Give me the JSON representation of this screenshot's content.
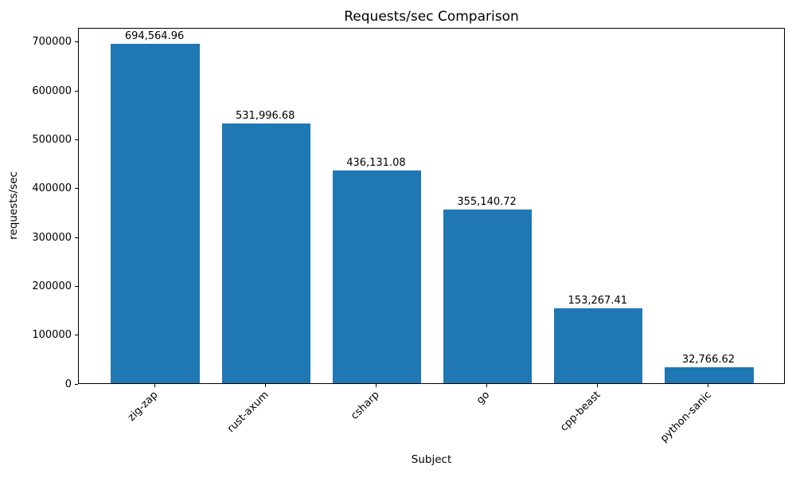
{
  "chart_data": {
    "type": "bar",
    "title": "Requests/sec Comparison",
    "xlabel": "Subject",
    "ylabel": "requests/sec",
    "categories": [
      "zig-zap",
      "rust-axum",
      "csharp",
      "go",
      "cpp-beast",
      "python-sanic"
    ],
    "values": [
      694564.96,
      531996.68,
      436131.08,
      355140.72,
      153267.41,
      32766.62
    ],
    "value_labels": [
      "694,564.96",
      "531,996.68",
      "436,131.08",
      "355,140.72",
      "153,267.41",
      "32,766.62"
    ],
    "bar_color": "#1f77b4",
    "ylim": [
      0,
      729293
    ],
    "yticks": [
      0,
      100000,
      200000,
      300000,
      400000,
      500000,
      600000,
      700000
    ],
    "ytick_labels": [
      "0",
      "100000",
      "200000",
      "300000",
      "400000",
      "500000",
      "600000",
      "700000"
    ],
    "xtick_rotation": 45,
    "grid": false,
    "bar_width_rel": 0.8,
    "x_margin_rel": 0.05,
    "background": "#ffffff",
    "text_color": "#000000"
  }
}
